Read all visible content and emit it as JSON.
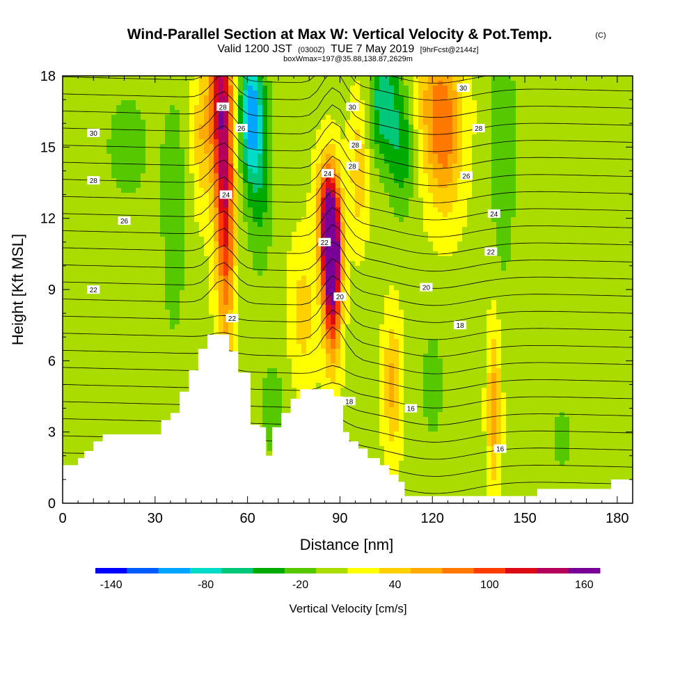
{
  "chart_data": {
    "type": "heatmap",
    "title": "Wind-Parallel Section at Max W: Vertical Velocity & Pot.Temp.",
    "title_mark": "(C)",
    "subtitle_parts": [
      "Valid 1200 JST",
      "(0300Z)",
      "TUE 7 May 2019",
      "[9hrFcst@2144z]"
    ],
    "subtitle2": "boxWmax=197@35.88,138.87,2629m",
    "xlabel": "Distance [nm]",
    "ylabel": "Height [Kft MSL]",
    "xlim": [
      0,
      185
    ],
    "ylim": [
      0,
      18
    ],
    "x_ticks": [
      0,
      30,
      60,
      90,
      120,
      150,
      180
    ],
    "y_ticks": [
      0,
      3,
      6,
      9,
      12,
      15,
      18
    ],
    "grid": false,
    "colorbar": {
      "label": "Vertical Velocity [cm/s]",
      "range": [
        -150,
        170
      ],
      "tick_labels": [
        -140,
        -80,
        -20,
        40,
        100,
        160
      ],
      "colors": [
        "#0000ff",
        "#005cff",
        "#00a5ff",
        "#00dcc8",
        "#00c878",
        "#00aa00",
        "#55c800",
        "#aadc00",
        "#ffff00",
        "#ffd000",
        "#ffaa00",
        "#ff7800",
        "#ff3c00",
        "#dc0a14",
        "#b4005a",
        "#780096"
      ]
    },
    "terrain_kft": [
      {
        "x": 0,
        "h": 1.6
      },
      {
        "x": 4,
        "h": 1.6
      },
      {
        "x": 5,
        "h": 1.9
      },
      {
        "x": 7,
        "h": 2.2
      },
      {
        "x": 10,
        "h": 2.6
      },
      {
        "x": 13,
        "h": 2.9
      },
      {
        "x": 30,
        "h": 2.9
      },
      {
        "x": 32,
        "h": 3.5
      },
      {
        "x": 35,
        "h": 3.8
      },
      {
        "x": 38,
        "h": 4.7
      },
      {
        "x": 41,
        "h": 5.6
      },
      {
        "x": 44,
        "h": 6.5
      },
      {
        "x": 47,
        "h": 7.1
      },
      {
        "x": 51,
        "h": 7.1
      },
      {
        "x": 54,
        "h": 6.4
      },
      {
        "x": 57,
        "h": 5.5
      },
      {
        "x": 61,
        "h": 3.3
      },
      {
        "x": 64,
        "h": 3.2
      },
      {
        "x": 66,
        "h": 2.0
      },
      {
        "x": 68,
        "h": 3.2
      },
      {
        "x": 71,
        "h": 3.8
      },
      {
        "x": 74,
        "h": 4.4
      },
      {
        "x": 77,
        "h": 4.8
      },
      {
        "x": 86,
        "h": 4.8
      },
      {
        "x": 88,
        "h": 4.5
      },
      {
        "x": 91,
        "h": 3.0
      },
      {
        "x": 93,
        "h": 2.6
      },
      {
        "x": 96,
        "h": 2.3
      },
      {
        "x": 99,
        "h": 1.9
      },
      {
        "x": 103,
        "h": 1.6
      },
      {
        "x": 106,
        "h": 1.2
      },
      {
        "x": 109,
        "h": 0.9
      },
      {
        "x": 111,
        "h": 0.3
      },
      {
        "x": 152,
        "h": 0.3
      },
      {
        "x": 154,
        "h": 0.6
      },
      {
        "x": 176,
        "h": 0.6
      },
      {
        "x": 178,
        "h": 1.0
      },
      {
        "x": 185,
        "h": 1.0
      }
    ],
    "w_field_features": [
      {
        "x": 51,
        "y": 17.5,
        "w": 115,
        "sx": 2.5,
        "sy": 3.5
      },
      {
        "x": 53,
        "y": 12.0,
        "w": 95,
        "sx": 2.0,
        "sy": 4.0
      },
      {
        "x": 61,
        "y": 16.5,
        "w": -95,
        "sx": 2.5,
        "sy": 2.0
      },
      {
        "x": 64,
        "y": 14.0,
        "w": -45,
        "sx": 3.0,
        "sy": 3.0
      },
      {
        "x": 87,
        "y": 11.0,
        "w": 140,
        "sx": 2.2,
        "sy": 1.6
      },
      {
        "x": 87.5,
        "y": 9.0,
        "w": 120,
        "sx": 2.0,
        "sy": 2.2
      },
      {
        "x": 86,
        "y": 12.8,
        "w": 70,
        "sx": 2.5,
        "sy": 1.5
      },
      {
        "x": 104,
        "y": 17.0,
        "w": -70,
        "sx": 3.0,
        "sy": 1.8
      },
      {
        "x": 110,
        "y": 15.0,
        "w": -50,
        "sx": 3.0,
        "sy": 2.0
      },
      {
        "x": 122,
        "y": 17.0,
        "w": 60,
        "sx": 5.0,
        "sy": 2.0
      },
      {
        "x": 124,
        "y": 14.5,
        "w": 45,
        "sx": 4.0,
        "sy": 2.0
      },
      {
        "x": 143,
        "y": 15.0,
        "w": -35,
        "sx": 3.0,
        "sy": 4.0
      },
      {
        "x": 107,
        "y": 5.0,
        "w": 50,
        "sx": 2.0,
        "sy": 2.0
      },
      {
        "x": 120,
        "y": 5.0,
        "w": -25,
        "sx": 3.0,
        "sy": 2.0
      },
      {
        "x": 140,
        "y": 4.0,
        "w": 55,
        "sx": 1.5,
        "sy": 2.5
      },
      {
        "x": 162,
        "y": 2.7,
        "w": -20,
        "sx": 4.0,
        "sy": 1.5
      },
      {
        "x": 36,
        "y": 12.0,
        "w": -30,
        "sx": 3.0,
        "sy": 4.0
      },
      {
        "x": 21,
        "y": 15.0,
        "w": -25,
        "sx": 6.0,
        "sy": 2.0
      },
      {
        "x": 68,
        "y": 4.0,
        "w": -30,
        "sx": 3.0,
        "sy": 1.5
      },
      {
        "x": 96,
        "y": 14.0,
        "w": 40,
        "sx": 2.0,
        "sy": 2.0
      },
      {
        "x": 45,
        "y": 15.5,
        "w": 40,
        "sx": 2.0,
        "sy": 2.0
      },
      {
        "x": 78,
        "y": 8.0,
        "w": 35,
        "sx": 3.0,
        "sy": 2.0
      }
    ],
    "theta_contour_labels": [
      {
        "text": "30",
        "x": 10,
        "y": 15.6
      },
      {
        "text": "28",
        "x": 10,
        "y": 13.6
      },
      {
        "text": "26",
        "x": 20,
        "y": 11.9
      },
      {
        "text": "22",
        "x": 10,
        "y": 9.0
      },
      {
        "text": "28",
        "x": 52,
        "y": 16.7
      },
      {
        "text": "26",
        "x": 58,
        "y": 15.8
      },
      {
        "text": "24",
        "x": 53,
        "y": 13.0
      },
      {
        "text": "22",
        "x": 55,
        "y": 7.8
      },
      {
        "text": "24",
        "x": 86,
        "y": 13.9
      },
      {
        "text": "22",
        "x": 85,
        "y": 11.0
      },
      {
        "text": "20",
        "x": 90,
        "y": 8.7
      },
      {
        "text": "18",
        "x": 93,
        "y": 4.3
      },
      {
        "text": "30",
        "x": 94,
        "y": 16.7
      },
      {
        "text": "28",
        "x": 95,
        "y": 15.1
      },
      {
        "text": "28",
        "x": 94,
        "y": 14.2
      },
      {
        "text": "30",
        "x": 130,
        "y": 17.5
      },
      {
        "text": "28",
        "x": 135,
        "y": 15.8
      },
      {
        "text": "26",
        "x": 131,
        "y": 13.8
      },
      {
        "text": "24",
        "x": 140,
        "y": 12.2
      },
      {
        "text": "22",
        "x": 139,
        "y": 10.6
      },
      {
        "text": "20",
        "x": 118,
        "y": 9.1
      },
      {
        "text": "18",
        "x": 129,
        "y": 7.5
      },
      {
        "text": "16",
        "x": 113,
        "y": 4.0
      },
      {
        "text": "16",
        "x": 142,
        "y": 2.3
      }
    ]
  }
}
